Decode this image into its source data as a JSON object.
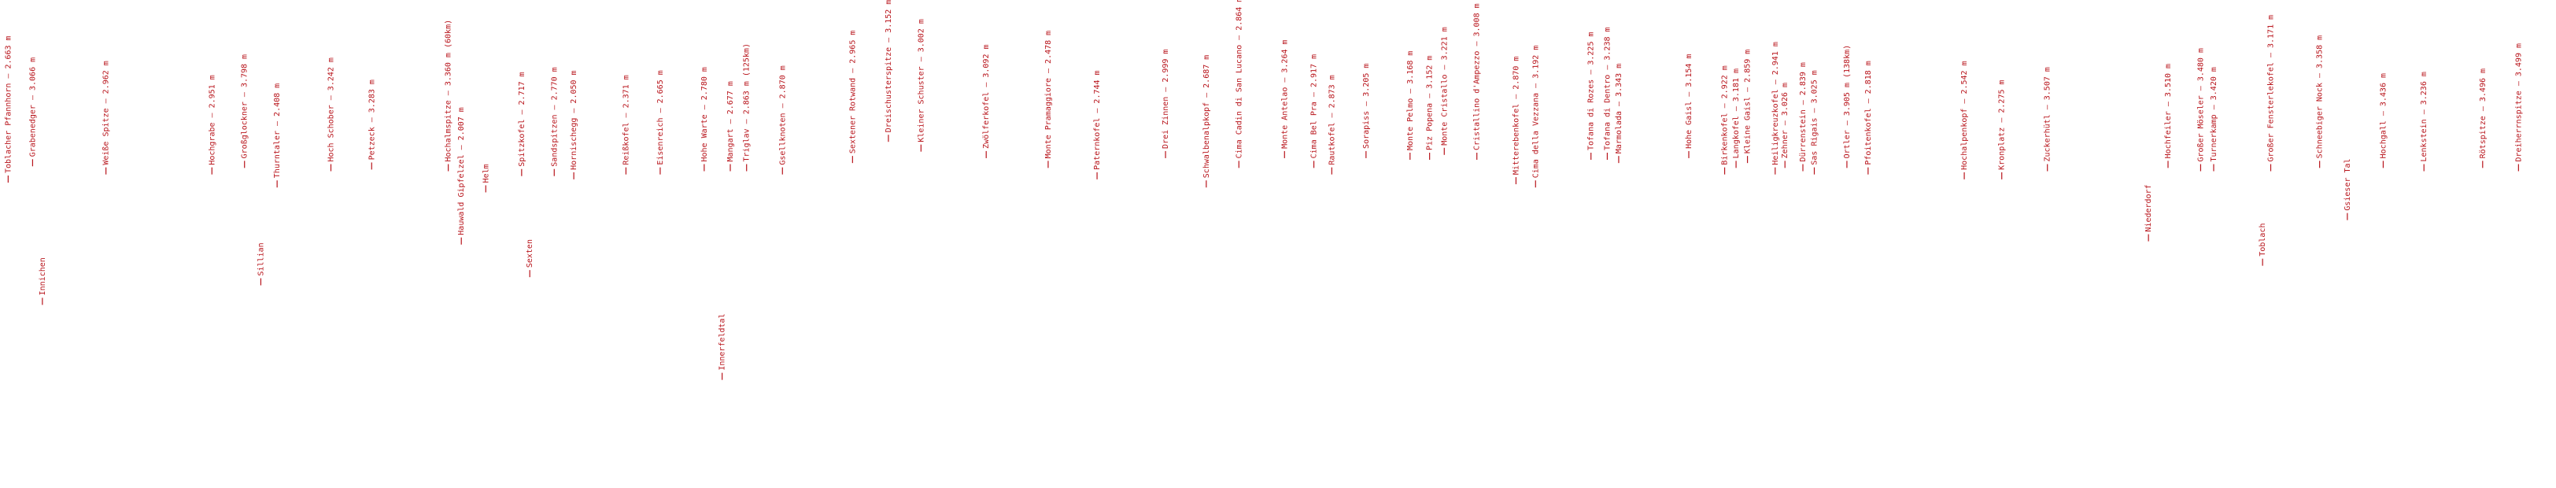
{
  "labels": [
    "Toblacher Pfannhorn – 2.663 m",
    "Grabenedger – 3.066 m",
    "Innichen",
    "Weiße Spitze – 2.962 m",
    "Hochgrabe – 2.951 m",
    "Großglockner – 3.798 m",
    "Sillian",
    "Thurntaler – 2.408 m",
    "Hoch Schober – 3.242 m",
    "Petzeck – 3.283 m",
    "Hochalmspitze – 3.360 m (60km)",
    "Hauwald Gipfelzel – 2.007 m",
    "Helm",
    "Spitzkofel – 2.717 m",
    "Sexten",
    "Sandspitzen – 2.770 m",
    "Hornischegg – 2.050 m",
    "Reißkofel – 2.371 m",
    "Eisenreich – 2.665 m",
    "Hohe Warte – 2.780 m",
    "Innerfeldtal",
    "Mangart – 2.677 m",
    "Triglav – 2.863 m (125km)",
    "Gsellknoten – 2.870 m",
    "Sextener Rotwand – 2.965 m",
    "Dreischusterspitze – 3.152 m",
    "Kleiner Schuster – 3.002 m",
    "Zwölferkofel – 3.092 m",
    "Monte Pramaggiore – 2.478 m",
    "Paternkofel – 2.744 m",
    "Drei Zinnen – 2.999 m",
    "Schwalbenalpkopf – 2.687 m",
    "Cima Cadin di San Lucano – 2.864 m",
    "Monte Antelao – 3.264 m",
    "Cima Bel Pra – 2.917 m",
    "Rautkofel – 2.873 m",
    "Sorapiss – 3.205 m",
    "Monte Pelmo – 3.168 m",
    "Piz Popena – 3.152 m",
    "Monte Cristallo – 3.221 m",
    "Cristallino d'Ampezzo – 3.008 m",
    "Mitterebenkofel – 2.870 m",
    "Cima della Vezzana – 3.192 m",
    "Tofana di Rozes – 3.225 m",
    "Tofana di Dentro – 3.238 m",
    "Marmolada – 3.343 m",
    "Hohe Gaisl – 3.154 m",
    "Birkenkofel – 2.922 m",
    "Langkofel – 3.181 m",
    "Kleine Gaisl – 2.859 m",
    "Heiligkreuzkofel – 2.941 m",
    "Zehner – 3.026 m",
    "Dürrenstein – 2.839 m",
    "Sas Rigais – 3.025 m",
    "Ortler – 3.905 m (138km)",
    "Pfoitenkofel – 2.818 m",
    "Hochalpenkopf – 2.542 m",
    "Kronplatz – 2.275 m",
    "Zuckerhütl – 3.507 m",
    "Niederdorf",
    "Hochfeiler – 3.510 m",
    "Großer Möseler – 3.480 m",
    "Turnerkamp – 3.420 m",
    "Toblach",
    "Großer Fensterlekofel – 3.171 m",
    "Schneebiger Nock – 3.358 m",
    "Gsieser Tal",
    "Hochgall – 3.436 m",
    "Lenkstein – 3.236 m",
    "Rötspitze – 3.496 m",
    "Dreiherrnspitze – 3.499 m"
  ]
}
